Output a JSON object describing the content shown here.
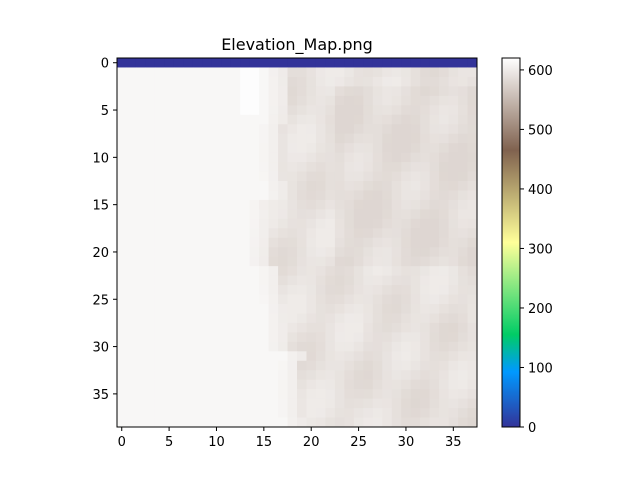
{
  "chart_data": {
    "type": "heatmap",
    "title": "Elevation_Map.png",
    "xlabel": "",
    "ylabel": "",
    "grid": false,
    "colormap": "terrain",
    "shape": {
      "rows": 39,
      "cols": 38
    },
    "x_ticks": [
      0,
      5,
      10,
      15,
      20,
      25,
      30,
      35
    ],
    "y_ticks": [
      0,
      5,
      10,
      15,
      20,
      25,
      30,
      35
    ],
    "xlim": [
      -0.5,
      37.5
    ],
    "ylim": [
      38.5,
      -0.5
    ],
    "colorbar": {
      "range": [
        0,
        620
      ],
      "ticks": [
        0,
        100,
        200,
        300,
        400,
        500,
        600
      ]
    },
    "values_summary": {
      "row_0": 0,
      "left_plateau": 612,
      "right_region_min": 580,
      "right_region_max": 600
    }
  }
}
